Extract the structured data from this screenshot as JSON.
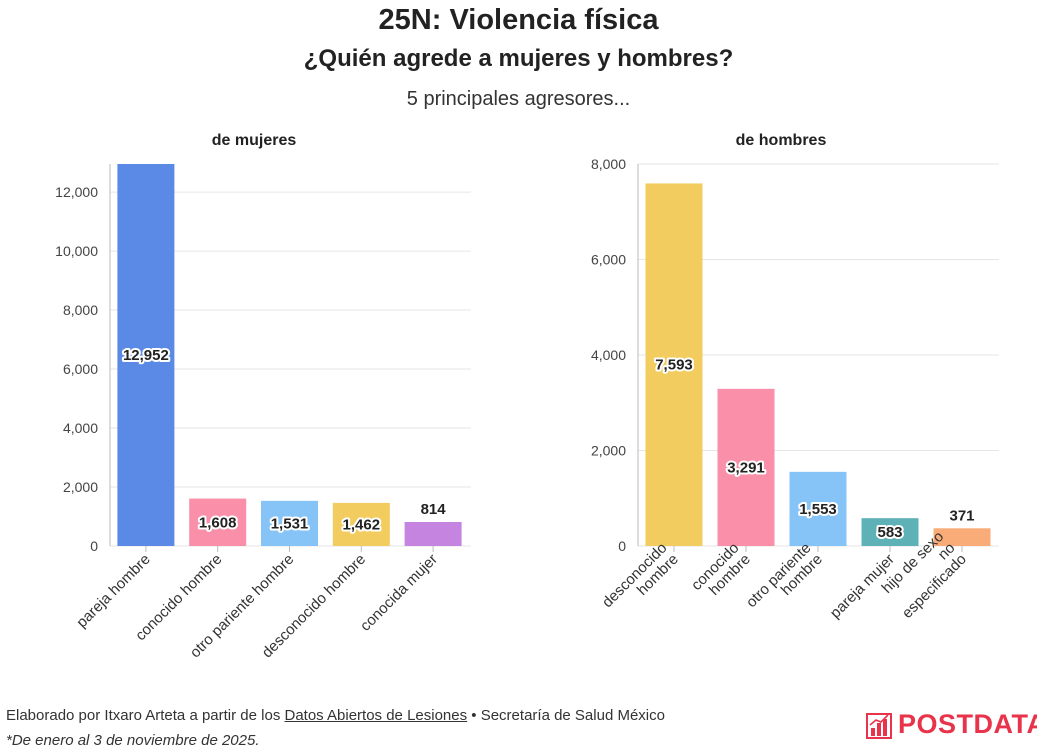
{
  "header": {
    "title": "25N: Violencia física",
    "subtitle": "¿Quién agrede a mujeres y hombres?",
    "intro": "5 principales agresores..."
  },
  "chart_data": [
    {
      "type": "bar",
      "title": "de mujeres",
      "categories": [
        "pareja hombre",
        "conocido hombre",
        "otro pariente hombre",
        "desconocido hombre",
        "conocida mujer"
      ],
      "values": [
        12952,
        1608,
        1531,
        1462,
        814
      ],
      "value_labels": [
        "12,952",
        "1,608",
        "1,531",
        "1,462",
        "814"
      ],
      "colors": [
        "#5b8ae6",
        "#f98fa8",
        "#86c3f7",
        "#f2cc5e",
        "#c584e0"
      ],
      "ylim": [
        0,
        12952
      ],
      "yticks": [
        0,
        2000,
        4000,
        6000,
        8000,
        10000,
        12000
      ],
      "ytick_labels": [
        "0",
        "2,000",
        "4,000",
        "6,000",
        "8,000",
        "10,000",
        "12,000"
      ],
      "xlabel": "",
      "ylabel": ""
    },
    {
      "type": "bar",
      "title": "de hombres",
      "categories": [
        "desconocido hombre",
        "conocido hombre",
        "otro pariente hombre",
        "pareja mujer",
        "hijo de sexo no especificado"
      ],
      "values": [
        7593,
        3291,
        1553,
        583,
        371
      ],
      "value_labels": [
        "7,593",
        "3,291",
        "1,553",
        "583",
        "371"
      ],
      "colors": [
        "#f2cc5e",
        "#f98fa8",
        "#86c3f7",
        "#5fb1b8",
        "#f9ac78"
      ],
      "ylim": [
        0,
        8000
      ],
      "yticks": [
        0,
        2000,
        4000,
        6000,
        8000
      ],
      "ytick_labels": [
        "0",
        "2,000",
        "4,000",
        "6,000",
        "8,000"
      ],
      "xlabel": "",
      "ylabel": ""
    }
  ],
  "footer": {
    "credit_prefix": "Elaborado por Itxaro Arteta a partir de los ",
    "credit_link": "Datos Abiertos de Lesiones",
    "credit_suffix": " • Secretaría de Salud México",
    "note": "*De enero al 3 de noviembre de 2025."
  },
  "brand": {
    "name": "POSTDATA",
    "color": "#e8334a",
    "icon": "bar-chart-logo-icon"
  }
}
